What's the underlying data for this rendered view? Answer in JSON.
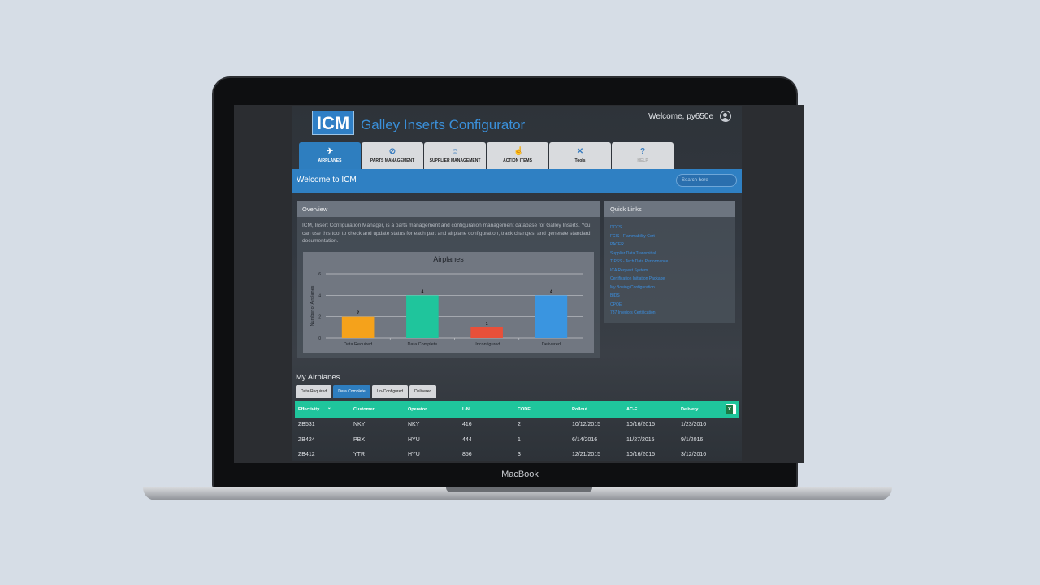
{
  "device": {
    "brand": "MacBook"
  },
  "header": {
    "logo": "ICM",
    "title": "Galley Inserts Configurator",
    "welcome": "Welcome, py650e"
  },
  "tabs": [
    {
      "label": "AIRPLANES",
      "icon": "airplane-icon"
    },
    {
      "label": "PARTS MANAGEMENT",
      "icon": "parts-icon"
    },
    {
      "label": "SUPPLIER MANAGEMENT",
      "icon": "supplier-icon"
    },
    {
      "label": "ACTION ITEMS",
      "icon": "action-icon"
    },
    {
      "label": "Tools",
      "icon": "tools-icon"
    },
    {
      "label": "HELP",
      "icon": "help-icon"
    }
  ],
  "bluebar": {
    "label": "Welcome to ICM",
    "search_placeholder": "Search here"
  },
  "overview": {
    "title": "Overview",
    "text": "ICM, Insert Configuration Manager, is a parts management and configuration management database for Galley Inserts. You can use this tool to check and update status for each part and airplane configuration, track changes, and generate standard documentation."
  },
  "chart_data": {
    "type": "bar",
    "title": "Airplanes",
    "ylabel": "Number of Airplanes",
    "xlabel": "",
    "categories": [
      "Data Required",
      "Data Complete",
      "Unconfigured",
      "Delivered"
    ],
    "values": [
      2,
      4,
      1,
      4
    ],
    "colors": [
      "#f5a21b",
      "#1fc59c",
      "#e8503a",
      "#3a95e0"
    ],
    "ylim": [
      0,
      6
    ],
    "yticks": [
      0,
      2,
      4,
      6
    ],
    "grid": true
  },
  "quick_links": {
    "title": "Quick Links",
    "items": [
      "DCCS",
      "FCIS - Flammability Cert",
      "PACER",
      "Supplier Data Transmittal",
      "TIPSS - Tech Data Performance",
      "ICA Request System",
      "Certification Initiation Package",
      "My Boeing Configuration",
      "BIDS",
      "CPQE",
      "737 Interiors Certification"
    ]
  },
  "my_airplanes": {
    "title": "My Airplanes",
    "subtabs": [
      "Data Required",
      "Data Complete",
      "Un-Configured",
      "Delivered"
    ],
    "columns": [
      "Effectivity",
      "Customer",
      "Operator",
      "L/N",
      "CODE",
      "Rollout",
      "AC-E",
      "Delivery"
    ],
    "rows": [
      [
        "ZB531",
        "NKY",
        "NKY",
        "416",
        "2",
        "10/12/2015",
        "10/16/2015",
        "1/23/2016"
      ],
      [
        "ZB424",
        "PBX",
        "HYU",
        "444",
        "1",
        "6/14/2016",
        "11/27/2015",
        "9/1/2016"
      ],
      [
        "ZB412",
        "YTR",
        "HYU",
        "856",
        "3",
        "12/21/2015",
        "10/16/2015",
        "3/12/2016"
      ]
    ]
  }
}
